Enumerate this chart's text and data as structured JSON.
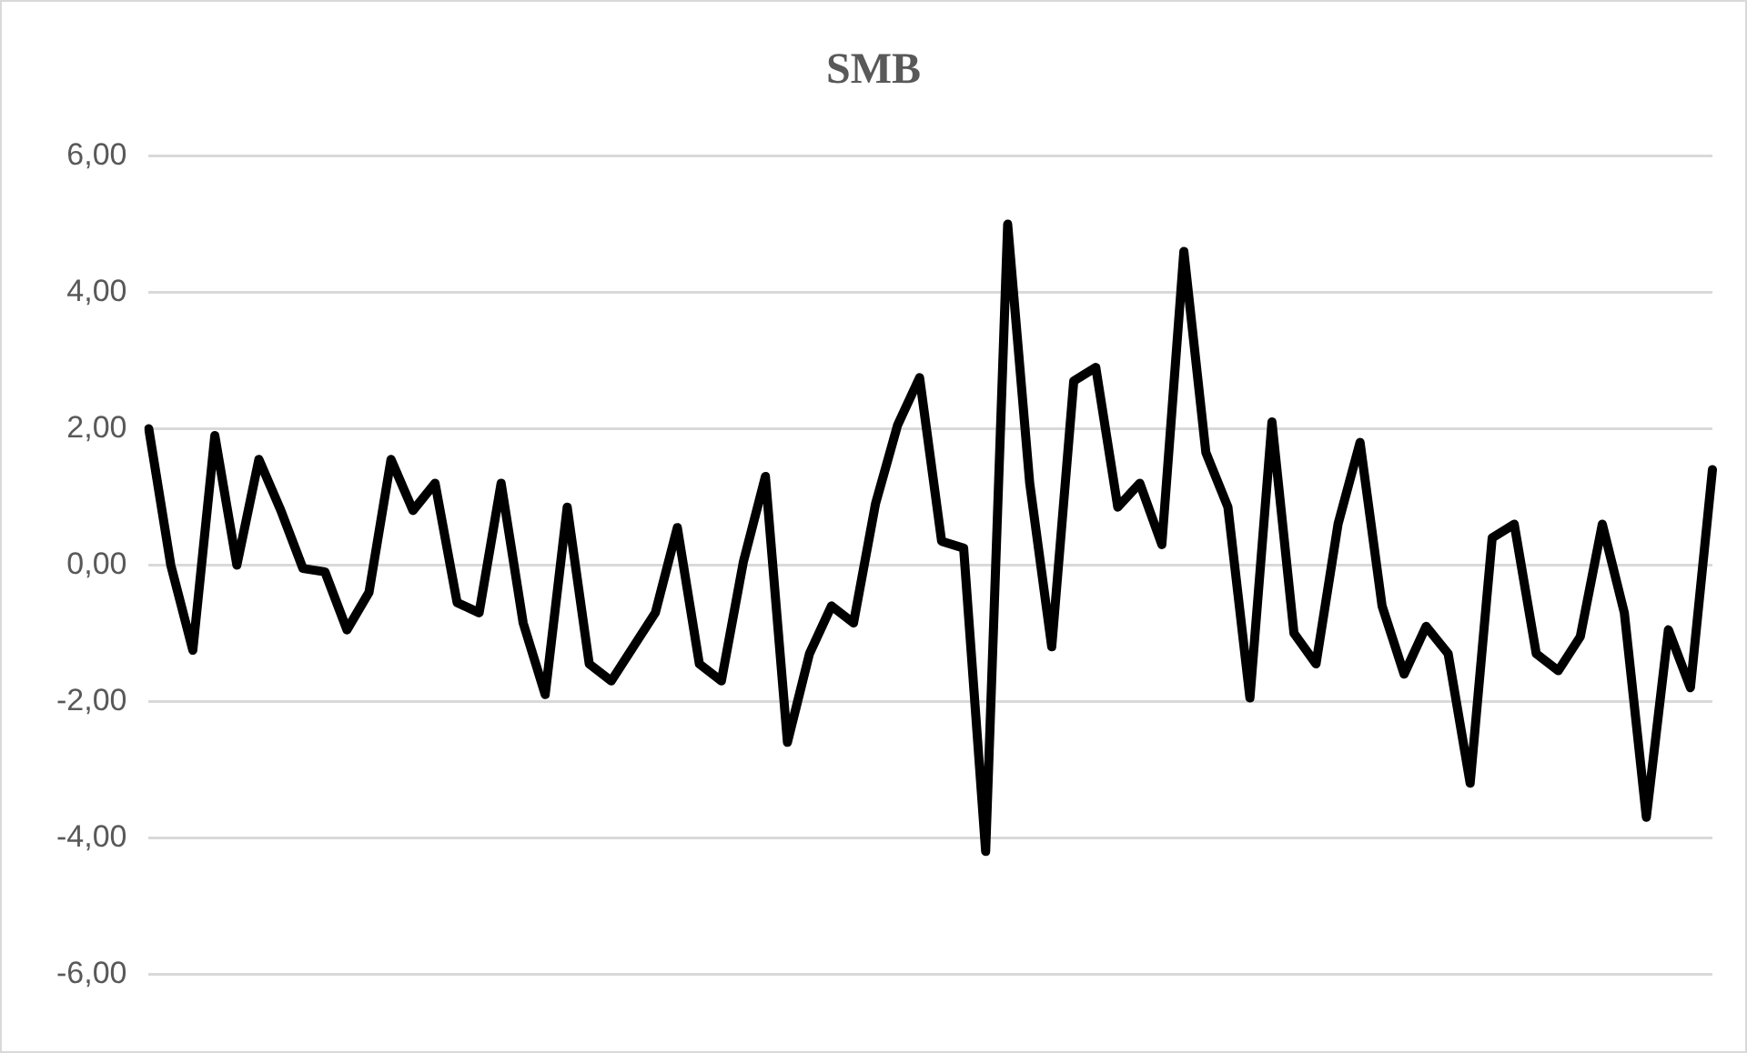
{
  "chart_data": {
    "type": "line",
    "title": "SMB",
    "categories": [
      null,
      null,
      null,
      null,
      null,
      null,
      null,
      null,
      null,
      null,
      null,
      null,
      null,
      null,
      null,
      null,
      null,
      null,
      null,
      null,
      null,
      null,
      null,
      null,
      null,
      null,
      null,
      null,
      null,
      null,
      null,
      null,
      null,
      null,
      null,
      null,
      null,
      null,
      null,
      null,
      null,
      null,
      null,
      null,
      null,
      null,
      null,
      null,
      null,
      null,
      null,
      null,
      null,
      null,
      null,
      null,
      null,
      null,
      null,
      null,
      null,
      null,
      null,
      null,
      null,
      null,
      null,
      null,
      null,
      null,
      null,
      null
    ],
    "series": [
      {
        "color": "#000000",
        "values": [
          2.0,
          0.0,
          -1.25,
          1.9,
          0.0,
          1.55,
          0.8,
          -0.05,
          -0.1,
          -0.95,
          -0.4,
          1.55,
          0.8,
          1.2,
          -0.55,
          -0.7,
          1.2,
          -0.85,
          -1.9,
          0.85,
          -1.45,
          -1.7,
          -1.2,
          -0.7,
          0.55,
          -1.45,
          -1.7,
          0.05,
          1.3,
          -2.6,
          -1.3,
          -0.6,
          -0.85,
          0.9,
          2.05,
          2.75,
          0.35,
          0.25,
          -4.2,
          5.0,
          1.2,
          -1.2,
          2.7,
          2.9,
          0.85,
          1.2,
          0.3,
          4.6,
          1.65,
          0.85,
          -1.95,
          2.1,
          -1.0,
          -1.45,
          0.6,
          1.8,
          -0.6,
          -1.6,
          -0.9,
          -1.3,
          -3.2,
          0.4,
          0.6,
          -1.3,
          -1.55,
          -1.05,
          0.6,
          -0.7,
          -3.7,
          -0.95,
          -1.8,
          1.4
        ]
      }
    ],
    "ylim": [
      -6,
      6
    ],
    "yticks": [
      {
        "value": -6,
        "label": "-6,00"
      },
      {
        "value": -4,
        "label": "-4,00"
      },
      {
        "value": -2,
        "label": "-2,00"
      },
      {
        "value": 0,
        "label": "0,00"
      },
      {
        "value": 2,
        "label": "2,00"
      },
      {
        "value": 4,
        "label": "4,00"
      },
      {
        "value": 6,
        "label": "6,00"
      }
    ],
    "grid": "y",
    "legend": false,
    "marker": "none",
    "line_style": "solid"
  }
}
